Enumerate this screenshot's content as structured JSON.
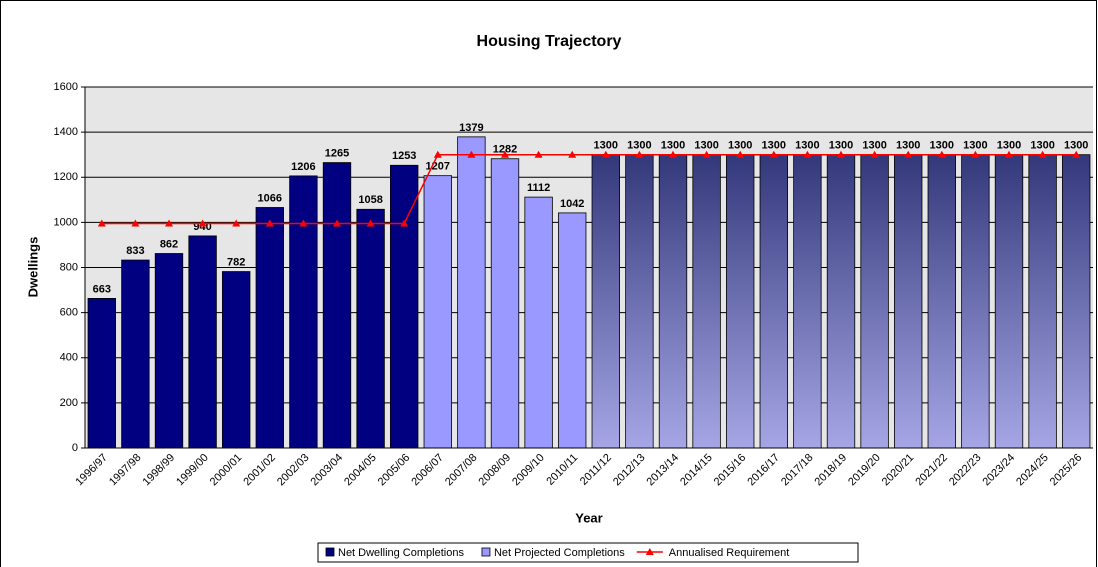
{
  "chart_data": {
    "type": "bar",
    "title": "Housing Trajectory",
    "x_label": "Year",
    "y_label": "Dwellings",
    "categories": [
      "1996/97",
      "1997/98",
      "1998/99",
      "1999/00",
      "2000/01",
      "2001/02",
      "2002/03",
      "2003/04",
      "2004/05",
      "2005/06",
      "2006/07",
      "2007/08",
      "2008/09",
      "2009/10",
      "2010/11",
      "2011/12",
      "2012/13",
      "2013/14",
      "2014/15",
      "2015/16",
      "2016/17",
      "2017/18",
      "2018/19",
      "2019/20",
      "2020/21",
      "2021/22",
      "2022/23",
      "2023/24",
      "2024/25",
      "2025/26"
    ],
    "series": [
      {
        "name": "Net Dwelling Completions",
        "type": "bar",
        "color": "#000080",
        "values": [
          663,
          833,
          862,
          940,
          782,
          1066,
          1206,
          1265,
          1058,
          1253,
          null,
          null,
          null,
          null,
          null,
          null,
          null,
          null,
          null,
          null,
          null,
          null,
          null,
          null,
          null,
          null,
          null,
          null,
          null,
          null
        ]
      },
      {
        "name": "Net Projected Completions",
        "type": "bar",
        "color": "#9999ff",
        "values": [
          null,
          null,
          null,
          null,
          null,
          null,
          null,
          null,
          null,
          null,
          1207,
          1379,
          1282,
          1112,
          1042,
          null,
          null,
          null,
          null,
          null,
          null,
          null,
          null,
          null,
          null,
          null,
          null,
          null,
          null,
          null
        ]
      },
      {
        "type": "bar",
        "color": [
          "#33387a",
          "#a6a6e6"
        ],
        "values": [
          null,
          null,
          null,
          null,
          null,
          null,
          null,
          null,
          null,
          null,
          null,
          null,
          null,
          null,
          null,
          1300,
          1300,
          1300,
          1300,
          1300,
          1300,
          1300,
          1300,
          1300,
          1300,
          1300,
          1300,
          1300,
          1300,
          1300
        ]
      },
      {
        "name": "Annualised Requirement",
        "type": "line",
        "color": "#ff0000",
        "values": [
          995,
          995,
          995,
          995,
          995,
          995,
          995,
          995,
          995,
          995,
          1300,
          1300,
          1300,
          1300,
          1300,
          1300,
          1300,
          1300,
          1300,
          1300,
          1300,
          1300,
          1300,
          1300,
          1300,
          1300,
          1300,
          1300,
          1300,
          1300
        ]
      }
    ],
    "ylim": [
      0,
      1600
    ],
    "yticks": [
      0,
      200,
      400,
      600,
      800,
      1000,
      1200,
      1400,
      1600
    ],
    "grid": true,
    "legend": "bottom"
  }
}
